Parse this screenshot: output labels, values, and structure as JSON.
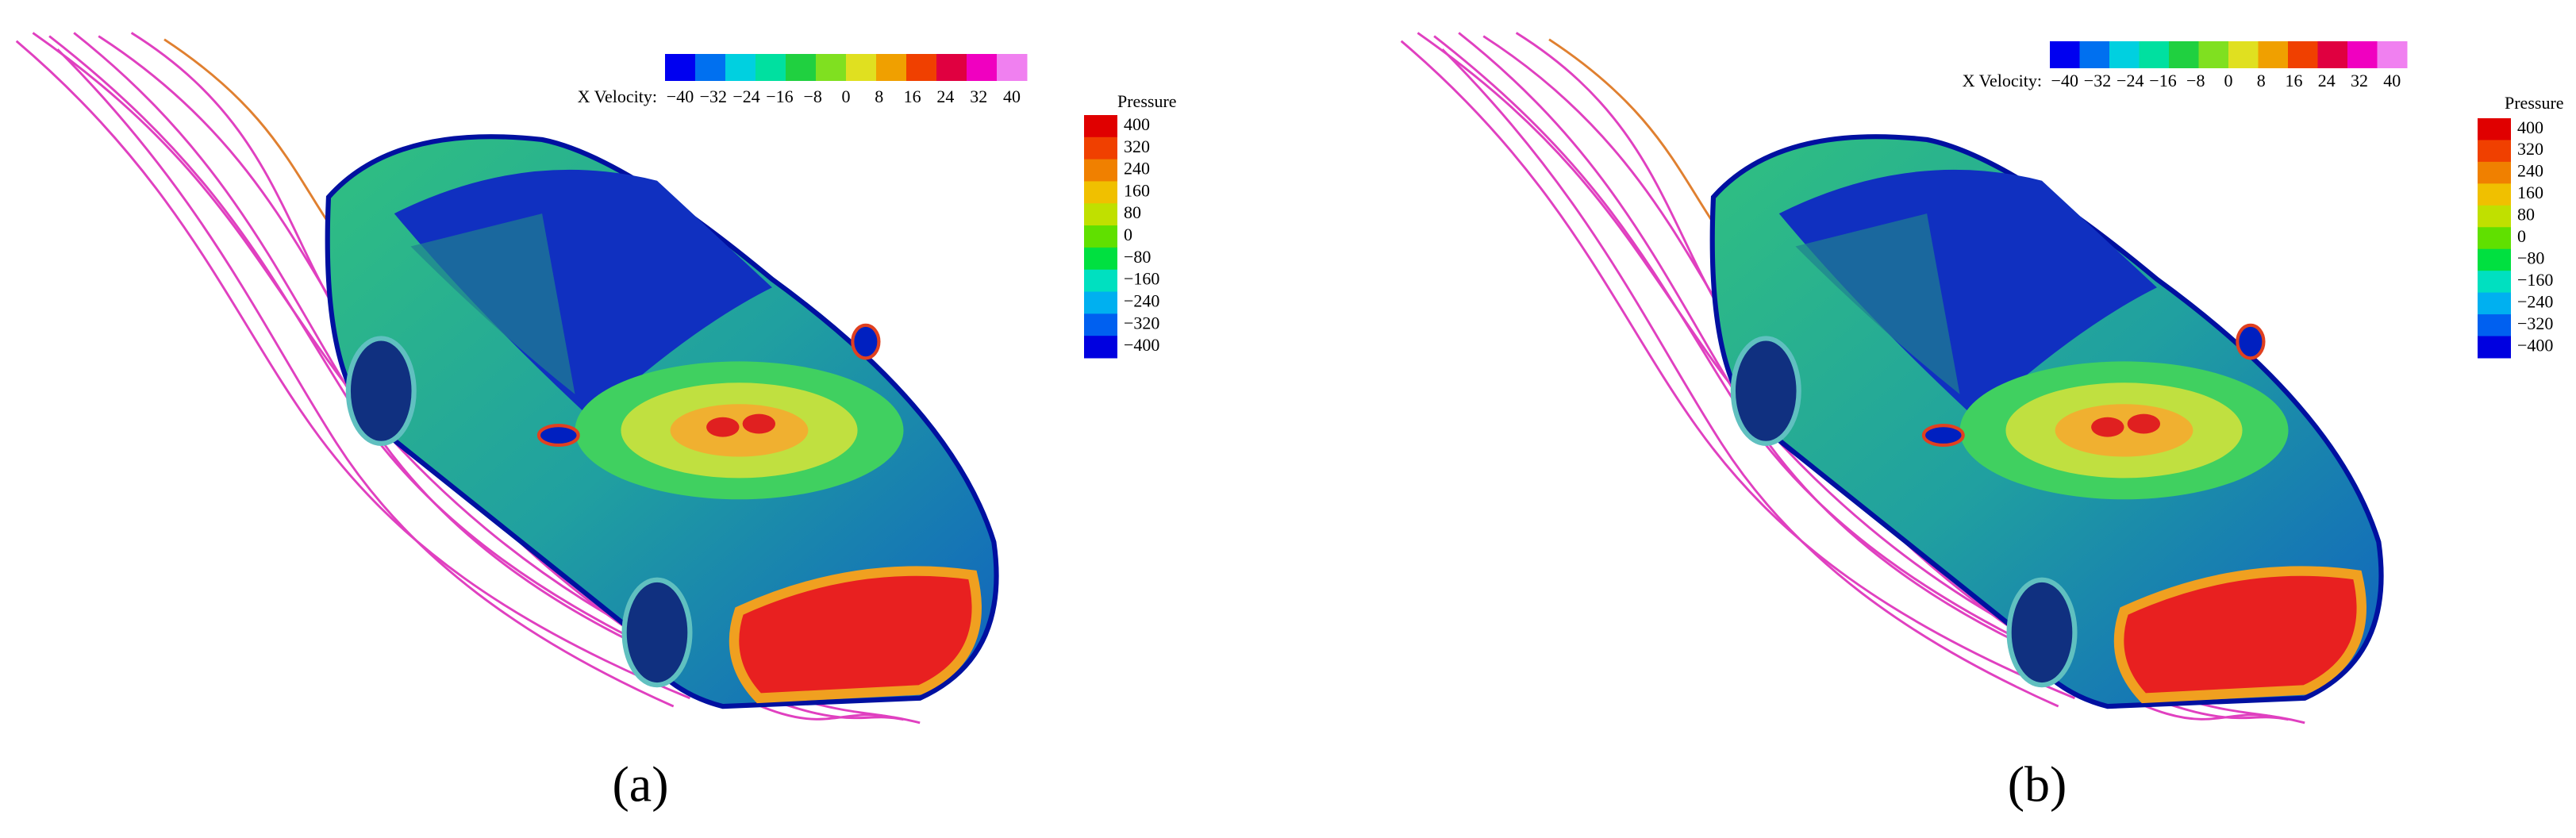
{
  "panels": [
    {
      "label": "(a)",
      "velocity_legend": {
        "title": "X Velocity:",
        "ticks": [
          "−40",
          "−32",
          "−24",
          "−16",
          "−8",
          "0",
          "8",
          "16",
          "24",
          "32",
          "40"
        ]
      },
      "pressure_legend": {
        "title": "Pressure",
        "ticks": [
          "400",
          "320",
          "240",
          "160",
          "80",
          "0",
          "−80",
          "−160",
          "−240",
          "−320",
          "−400"
        ]
      }
    },
    {
      "label": "(b)",
      "velocity_legend": {
        "title": "X Velocity:",
        "ticks": [
          "−40",
          "−32",
          "−24",
          "−16",
          "−8",
          "0",
          "8",
          "16",
          "24",
          "32",
          "40"
        ]
      },
      "pressure_legend": {
        "title": "Pressure",
        "ticks": [
          "400",
          "320",
          "240",
          "160",
          "80",
          "0",
          "−80",
          "−160",
          "−240",
          "−320",
          "−400"
        ]
      }
    }
  ]
}
